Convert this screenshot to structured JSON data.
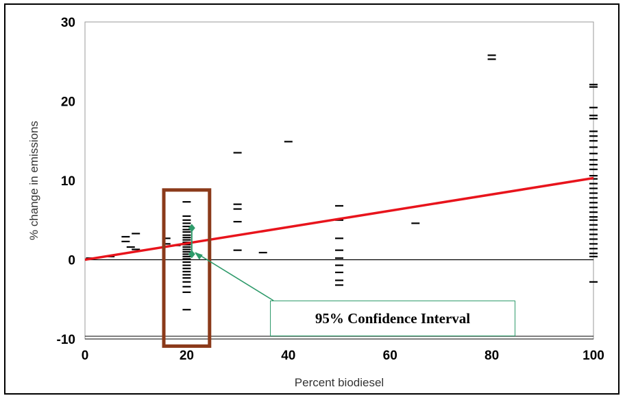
{
  "chart_data": {
    "type": "scatter",
    "title": "",
    "xlabel": "Percent biodiesel",
    "ylabel": "% change in emissions",
    "xlim": [
      0,
      100
    ],
    "ylim": [
      -10,
      30
    ],
    "x_ticks": [
      "0",
      "20",
      "40",
      "60",
      "80",
      "100"
    ],
    "y_ticks": [
      "30",
      "20",
      "10",
      "0",
      "-10"
    ],
    "grid": false,
    "marker": "short horizontal dash",
    "series": [
      {
        "points": [
          [
            1,
            0.2
          ],
          [
            5,
            0.4
          ],
          [
            8,
            2.3
          ],
          [
            8,
            2.9
          ],
          [
            9,
            1.6
          ],
          [
            10,
            3.3
          ],
          [
            10,
            1.3
          ],
          [
            16,
            2.0
          ],
          [
            16,
            2.7
          ],
          [
            18,
            1.8
          ],
          [
            20,
            7.3
          ],
          [
            20,
            5.5
          ],
          [
            20,
            5.0
          ],
          [
            20,
            4.6
          ],
          [
            20,
            4.2
          ],
          [
            20,
            3.8
          ],
          [
            20,
            3.5
          ],
          [
            20,
            3.1
          ],
          [
            20,
            2.8
          ],
          [
            20,
            2.5
          ],
          [
            20,
            2.2
          ],
          [
            20,
            1.9
          ],
          [
            20,
            1.6
          ],
          [
            20,
            1.3
          ],
          [
            20,
            1.0
          ],
          [
            20,
            0.7
          ],
          [
            20,
            0.4
          ],
          [
            20,
            0.1
          ],
          [
            20,
            -0.3
          ],
          [
            20,
            -0.7
          ],
          [
            20,
            -1.1
          ],
          [
            20,
            -1.5
          ],
          [
            20,
            -1.9
          ],
          [
            20,
            -2.3
          ],
          [
            20,
            -2.8
          ],
          [
            20,
            -3.4
          ],
          [
            20,
            -4.1
          ],
          [
            20,
            -6.3
          ],
          [
            30,
            13.5
          ],
          [
            30,
            7.0
          ],
          [
            30,
            6.4
          ],
          [
            30,
            4.8
          ],
          [
            30,
            1.2
          ],
          [
            35,
            0.9
          ],
          [
            40,
            14.9
          ],
          [
            50,
            6.8
          ],
          [
            50,
            5.0
          ],
          [
            50,
            2.7
          ],
          [
            50,
            1.2
          ],
          [
            50,
            0.2
          ],
          [
            50,
            -0.7
          ],
          [
            50,
            -1.6
          ],
          [
            50,
            -2.6
          ],
          [
            50,
            -3.2
          ],
          [
            65,
            4.6
          ],
          [
            80,
            25.8
          ],
          [
            80,
            25.3
          ],
          [
            100,
            22.1
          ],
          [
            100,
            21.8
          ],
          [
            100,
            19.2
          ],
          [
            100,
            18.2
          ],
          [
            100,
            17.8
          ],
          [
            100,
            16.2
          ],
          [
            100,
            15.6
          ],
          [
            100,
            15.0
          ],
          [
            100,
            14.2
          ],
          [
            100,
            13.4
          ],
          [
            100,
            12.6
          ],
          [
            100,
            12.0
          ],
          [
            100,
            11.4
          ],
          [
            100,
            10.6
          ],
          [
            100,
            10.2
          ],
          [
            100,
            9.6
          ],
          [
            100,
            9.0
          ],
          [
            100,
            8.4
          ],
          [
            100,
            7.8
          ],
          [
            100,
            7.2
          ],
          [
            100,
            6.6
          ],
          [
            100,
            6.0
          ],
          [
            100,
            5.4
          ],
          [
            100,
            5.0
          ],
          [
            100,
            4.4
          ],
          [
            100,
            3.8
          ],
          [
            100,
            3.2
          ],
          [
            100,
            2.6
          ],
          [
            100,
            2.0
          ],
          [
            100,
            1.4
          ],
          [
            100,
            0.8
          ],
          [
            100,
            0.4
          ],
          [
            100,
            -2.8
          ]
        ],
        "color": "#000000"
      }
    ],
    "trend_line": {
      "x": [
        0,
        100
      ],
      "y": [
        0,
        10.3
      ],
      "color": "#e8141c"
    },
    "annotation": {
      "highlight_x_range": [
        15.5,
        24.5
      ],
      "highlight_y_range": [
        -10.9,
        8.8
      ],
      "highlight_color": "#8b3a1a",
      "interval": {
        "x": 21,
        "y_low": 0.7,
        "y_high": 4.0
      },
      "callout_text": "95% Confidence Interval",
      "callout_color": "#2e9a6a"
    }
  }
}
